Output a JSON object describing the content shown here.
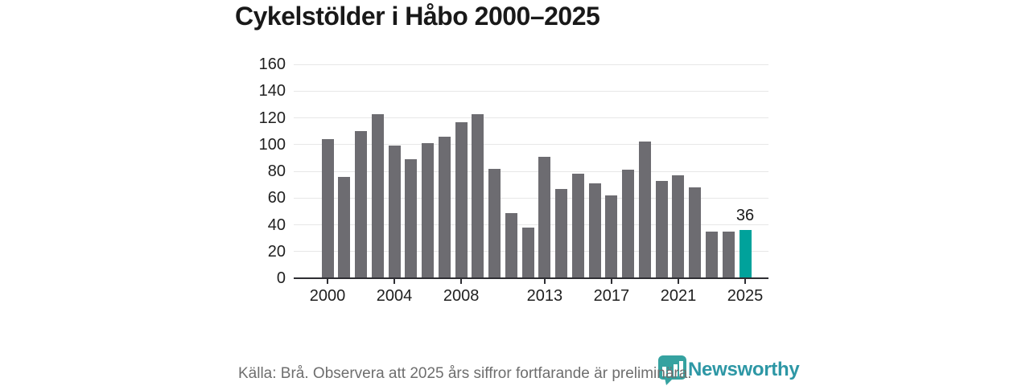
{
  "title": "Cykelstölder i Håbo 2000–2025",
  "chart_data": {
    "type": "bar",
    "title": "Cykelstölder i Håbo 2000–2025",
    "x": [
      2000,
      2001,
      2002,
      2003,
      2004,
      2005,
      2006,
      2007,
      2008,
      2009,
      2010,
      2011,
      2012,
      2013,
      2014,
      2015,
      2016,
      2017,
      2018,
      2019,
      2020,
      2021,
      2022,
      2023,
      2024,
      2025
    ],
    "values": [
      104,
      76,
      110,
      123,
      99,
      89,
      101,
      106,
      117,
      123,
      82,
      49,
      38,
      91,
      67,
      78,
      71,
      62,
      81,
      102,
      73,
      77,
      68,
      35,
      35,
      36
    ],
    "ylim": [
      0,
      160
    ],
    "y_ticks": [
      0,
      20,
      40,
      60,
      80,
      100,
      120,
      140,
      160
    ],
    "x_tick_years": [
      2000,
      2004,
      2008,
      2013,
      2017,
      2021,
      2025
    ],
    "grid": "horizontal",
    "legend": "none",
    "bar_color": "#6d6c71",
    "highlight_color": "#00a29b",
    "highlight_index": 25,
    "highlight_value_label": "36"
  },
  "footer": {
    "source_note": "Källa: Brå. Observera att 2025 års siffror fortfarande är preliminära."
  },
  "logo": {
    "text": "Newsworthy",
    "text_color": "#2d97a5",
    "icon": "newsworthy-bar-chart-bubble-icon",
    "icon_color": "#35a2a0"
  }
}
